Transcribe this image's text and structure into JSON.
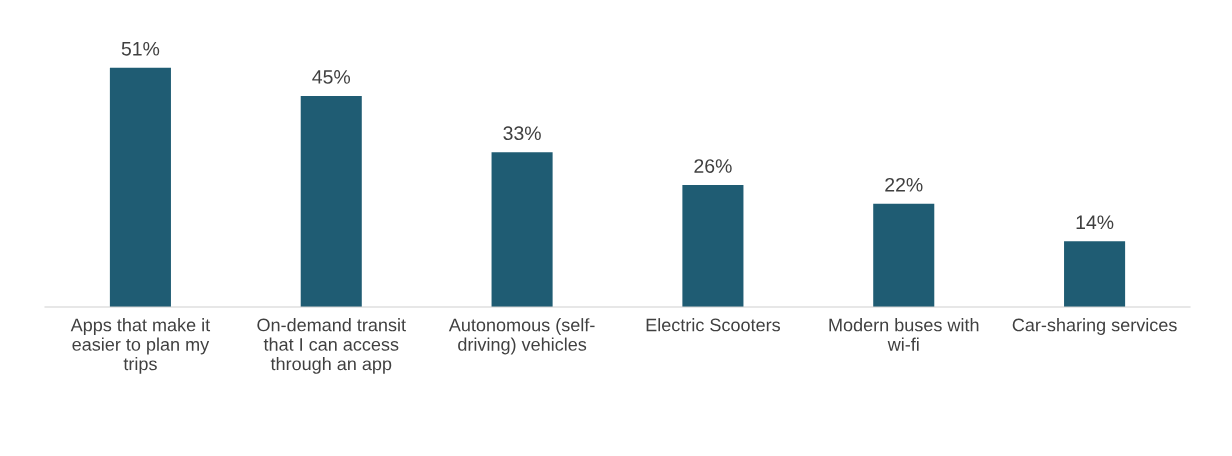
{
  "chart_data": {
    "type": "bar",
    "categories": [
      "Apps that make it\neasier to plan my\ntrips",
      "On-demand transit\nthat I can access\nthrough an app",
      "Autonomous (self-\ndriving) vehicles",
      "Electric Scooters",
      "Modern buses with\nwi-fi",
      "Car-sharing services"
    ],
    "values": [
      51,
      45,
      33,
      26,
      22,
      14
    ],
    "value_labels": [
      "51%",
      "45%",
      "33%",
      "26%",
      "22%",
      "14%"
    ],
    "color": "#1f5c73",
    "grid": false,
    "legend": false
  }
}
